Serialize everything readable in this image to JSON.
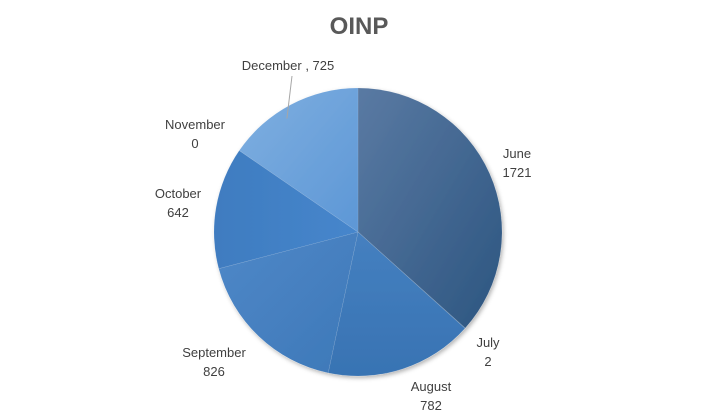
{
  "chart_data": {
    "type": "pie",
    "title": "OINP",
    "categories": [
      "June",
      "July",
      "August",
      "September",
      "October",
      "November",
      "December"
    ],
    "values": [
      1721,
      2,
      782,
      826,
      642,
      0,
      725
    ],
    "data_labels": [
      [
        "June",
        "1721"
      ],
      [
        "July",
        "2"
      ],
      [
        "August",
        "782"
      ],
      [
        "September",
        "826"
      ],
      [
        "October",
        "642"
      ],
      [
        "November",
        "0"
      ],
      [
        "December , 725"
      ]
    ],
    "colors": [
      "#3f6b98",
      "#3f6b98",
      "#3f7cc0",
      "#4a86c8",
      "#3f80c8",
      "#5d97d6",
      "#6fa4df"
    ],
    "legend": "none",
    "start_angle": "12 o'clock",
    "direction": "clockwise"
  }
}
